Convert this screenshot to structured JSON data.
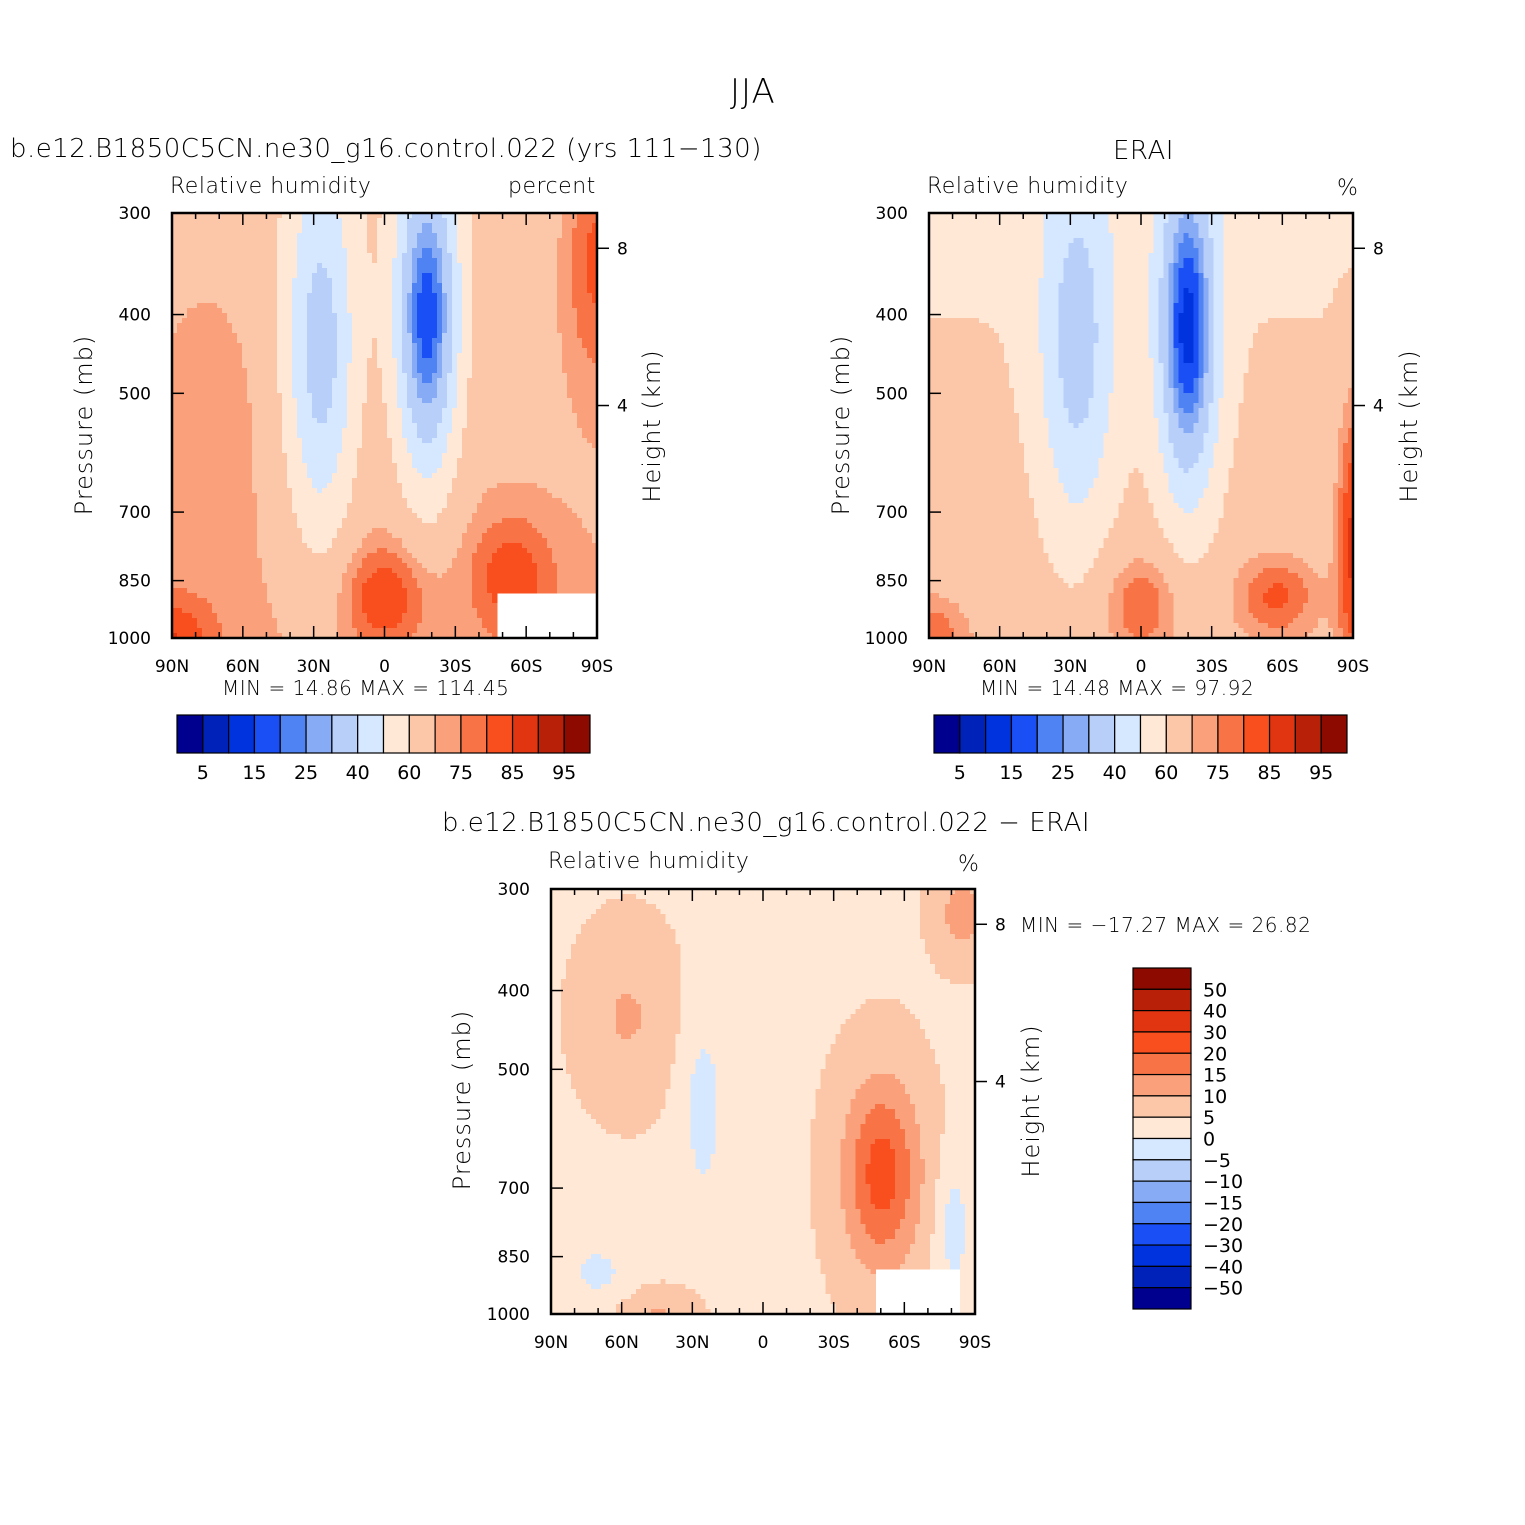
{
  "figure": {
    "title": "JJA"
  },
  "panels": [
    {
      "title": "b.e12.B1850C5CN.ne30_g16.control.022 (yrs 111−130)",
      "left_label": "Relative humidity",
      "right_label": "percent",
      "min_text": "MIN =   14.86   MAX = 114.45"
    },
    {
      "title": "ERAI",
      "left_label": "Relative humidity",
      "right_label": "%",
      "min_text": "MIN =   14.48   MAX =   97.92"
    },
    {
      "title": "b.e12.B1850C5CN.ne30_g16.control.022 − ERAI",
      "left_label": "Relative humidity",
      "right_label": "%",
      "min_text": "MIN = −17.27   MAX =   26.82"
    }
  ],
  "axes": {
    "ylabel": "Pressure (mb)",
    "ylabel_right": "Height (km)"
  },
  "chart_data": [
    {
      "type": "heatmap",
      "title": "b.e12.B1850C5CN.ne30_g16.control.022 (yrs 111−130)",
      "subtitle_left": "Relative humidity",
      "subtitle_right": "percent",
      "x_ticks": [
        "90N",
        "60N",
        "30N",
        "0",
        "30S",
        "60S",
        "90S"
      ],
      "x_range": [
        90,
        -90
      ],
      "y_ticks": [
        300,
        400,
        500,
        700,
        850,
        1000
      ],
      "y_range": [
        1000,
        300
      ],
      "y_scale": "log",
      "y2_ticks": [
        8,
        4
      ],
      "xlabel": "",
      "ylabel": "Pressure (mb)",
      "y2label": "Height (km)",
      "min": 14.86,
      "max": 114.45,
      "levels": [
        5,
        10,
        15,
        20,
        25,
        30,
        40,
        50,
        60,
        70,
        75,
        80,
        85,
        90,
        95
      ],
      "legend_labels": [
        "5",
        "15",
        "25",
        "40",
        "60",
        "75",
        "85",
        "95"
      ],
      "colors": [
        "#00008f",
        "#0022b8",
        "#0033dd",
        "#1a4ff5",
        "#4f82f2",
        "#87abf5",
        "#b8cffa",
        "#d6e8ff",
        "#ffe8d6",
        "#fcc7a8",
        "#faa07a",
        "#f87446",
        "#f94e1e",
        "#e03510",
        "#b82008",
        "#8c0a00"
      ],
      "legend_placement": "bottom",
      "grid": false
    },
    {
      "type": "heatmap",
      "title": "ERAI",
      "subtitle_left": "Relative humidity",
      "subtitle_right": "%",
      "x_ticks": [
        "90N",
        "60N",
        "30N",
        "0",
        "30S",
        "60S",
        "90S"
      ],
      "x_range": [
        90,
        -90
      ],
      "y_ticks": [
        300,
        400,
        500,
        700,
        850,
        1000
      ],
      "y_range": [
        1000,
        300
      ],
      "y_scale": "log",
      "y2_ticks": [
        8,
        4
      ],
      "xlabel": "",
      "ylabel": "Pressure (mb)",
      "y2label": "Height (km)",
      "min": 14.48,
      "max": 97.92,
      "levels": [
        5,
        10,
        15,
        20,
        25,
        30,
        40,
        50,
        60,
        70,
        75,
        80,
        85,
        90,
        95
      ],
      "legend_labels": [
        "5",
        "15",
        "25",
        "40",
        "60",
        "75",
        "85",
        "95"
      ],
      "colors": [
        "#00008f",
        "#0022b8",
        "#0033dd",
        "#1a4ff5",
        "#4f82f2",
        "#87abf5",
        "#b8cffa",
        "#d6e8ff",
        "#ffe8d6",
        "#fcc7a8",
        "#faa07a",
        "#f87446",
        "#f94e1e",
        "#e03510",
        "#b82008",
        "#8c0a00"
      ],
      "legend_placement": "bottom",
      "grid": false
    },
    {
      "type": "heatmap",
      "title": "b.e12.B1850C5CN.ne30_g16.control.022 − ERAI",
      "subtitle_left": "Relative humidity",
      "subtitle_right": "%",
      "x_ticks": [
        "90N",
        "60N",
        "30N",
        "0",
        "30S",
        "60S",
        "90S"
      ],
      "x_range": [
        90,
        -90
      ],
      "y_ticks": [
        300,
        400,
        500,
        700,
        850,
        1000
      ],
      "y_range": [
        1000,
        300
      ],
      "y_scale": "log",
      "y2_ticks": [
        8,
        4
      ],
      "xlabel": "",
      "ylabel": "Pressure (mb)",
      "y2label": "Height (km)",
      "min": -17.27,
      "max": 26.82,
      "levels": [
        -50,
        -40,
        -30,
        -20,
        -15,
        -10,
        -5,
        0,
        5,
        10,
        15,
        20,
        30,
        40,
        50
      ],
      "legend_labels": [
        "50",
        "40",
        "30",
        "20",
        "15",
        "10",
        "5",
        "0",
        "−5",
        "−10",
        "−15",
        "−20",
        "−30",
        "−40",
        "−50"
      ],
      "colors": [
        "#00008f",
        "#0022b8",
        "#0033dd",
        "#1a4ff5",
        "#4f82f2",
        "#87abf5",
        "#b8cffa",
        "#d6e8ff",
        "#ffe8d6",
        "#fcc7a8",
        "#faa07a",
        "#f87446",
        "#f94e1e",
        "#e03510",
        "#b82008",
        "#8c0a00"
      ],
      "legend_placement": "right",
      "grid": false
    }
  ]
}
